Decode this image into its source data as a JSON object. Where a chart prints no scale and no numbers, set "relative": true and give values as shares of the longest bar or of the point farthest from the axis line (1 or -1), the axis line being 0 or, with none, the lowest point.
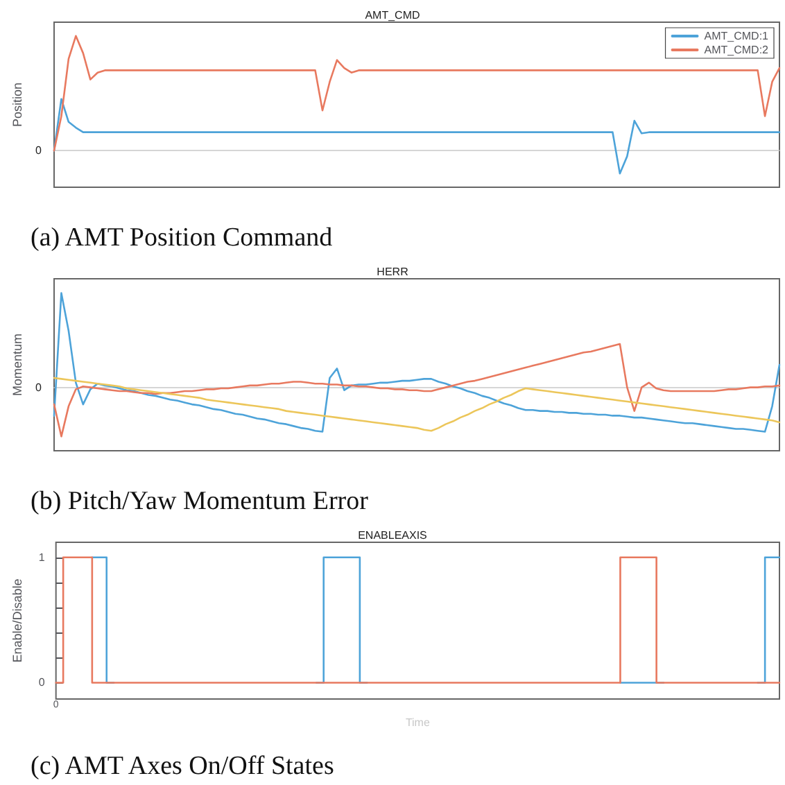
{
  "chart_data": [
    {
      "type": "line",
      "title": "AMT_CMD",
      "ylabel": "Position",
      "relative": true,
      "grid": false,
      "legend": "top right",
      "marker": "none",
      "line_style": "solid",
      "annotations": [
        "0",
        "(a) AMT Position Command"
      ],
      "categories": [
        null,
        null,
        null,
        null,
        null,
        null,
        null,
        null,
        null,
        null,
        null,
        null,
        null,
        null,
        null,
        null,
        null,
        null,
        null,
        null,
        null,
        null,
        null,
        null,
        null,
        null,
        null,
        null,
        null,
        null,
        null,
        null,
        null,
        null,
        null,
        null,
        null,
        null,
        null,
        null,
        null,
        null,
        null,
        null,
        null,
        null,
        null,
        null,
        null,
        null,
        null,
        null,
        null,
        null,
        null,
        null,
        null,
        null,
        null,
        null,
        null,
        null,
        null,
        null,
        null,
        null,
        null,
        null,
        null,
        null,
        null,
        null,
        null,
        null,
        null,
        null,
        null,
        null,
        null,
        null,
        null,
        null,
        null,
        null,
        null,
        null,
        null,
        null,
        null,
        null,
        null,
        null,
        null,
        null,
        null,
        null,
        null,
        null,
        null,
        null,
        null
      ],
      "series": [
        {
          "name": "AMT_CMD:1",
          "color": "#4da3d9",
          "values": [
            0,
            0.45,
            0.25,
            0.2,
            0.16,
            0.16,
            0.16,
            0.16,
            0.16,
            0.16,
            0.16,
            0.16,
            0.16,
            0.16,
            0.16,
            0.16,
            0.16,
            0.16,
            0.16,
            0.16,
            0.16,
            0.16,
            0.16,
            0.16,
            0.16,
            0.16,
            0.16,
            0.16,
            0.16,
            0.16,
            0.16,
            0.16,
            0.16,
            0.16,
            0.16,
            0.16,
            0.16,
            0.16,
            0.16,
            0.16,
            0.16,
            0.16,
            0.16,
            0.16,
            0.16,
            0.16,
            0.16,
            0.16,
            0.16,
            0.16,
            0.16,
            0.16,
            0.16,
            0.16,
            0.16,
            0.16,
            0.16,
            0.16,
            0.16,
            0.16,
            0.16,
            0.16,
            0.16,
            0.16,
            0.16,
            0.16,
            0.16,
            0.16,
            0.16,
            0.16,
            0.16,
            0.16,
            0.16,
            0.16,
            0.16,
            0.16,
            0.16,
            0.16,
            -0.2,
            -0.05,
            0.26,
            0.15,
            0.16,
            0.16,
            0.16,
            0.16,
            0.16,
            0.16,
            0.16,
            0.16,
            0.16,
            0.16,
            0.16,
            0.16,
            0.16,
            0.16,
            0.16,
            0.16,
            0.16,
            0.16,
            0.16
          ]
        },
        {
          "name": "AMT_CMD:2",
          "color": "#e8795f",
          "values": [
            0,
            0.3,
            0.8,
            1.0,
            0.85,
            0.62,
            0.68,
            0.7,
            0.7,
            0.7,
            0.7,
            0.7,
            0.7,
            0.7,
            0.7,
            0.7,
            0.7,
            0.7,
            0.7,
            0.7,
            0.7,
            0.7,
            0.7,
            0.7,
            0.7,
            0.7,
            0.7,
            0.7,
            0.7,
            0.7,
            0.7,
            0.7,
            0.7,
            0.7,
            0.7,
            0.7,
            0.7,
            0.35,
            0.6,
            0.79,
            0.72,
            0.68,
            0.7,
            0.7,
            0.7,
            0.7,
            0.7,
            0.7,
            0.7,
            0.7,
            0.7,
            0.7,
            0.7,
            0.7,
            0.7,
            0.7,
            0.7,
            0.7,
            0.7,
            0.7,
            0.7,
            0.7,
            0.7,
            0.7,
            0.7,
            0.7,
            0.7,
            0.7,
            0.7,
            0.7,
            0.7,
            0.7,
            0.7,
            0.7,
            0.7,
            0.7,
            0.7,
            0.7,
            0.7,
            0.7,
            0.7,
            0.7,
            0.7,
            0.7,
            0.7,
            0.7,
            0.7,
            0.7,
            0.7,
            0.7,
            0.7,
            0.7,
            0.7,
            0.7,
            0.7,
            0.7,
            0.7,
            0.7,
            0.3,
            0.6,
            0.72
          ]
        }
      ]
    },
    {
      "type": "line",
      "title": "HERR",
      "ylabel": "Momentum",
      "relative": true,
      "grid": false,
      "marker": "none",
      "line_style": "solid",
      "annotations": [
        "0",
        "(b) Pitch/Yaw Momentum Error"
      ],
      "categories": [
        null,
        null,
        null,
        null,
        null,
        null,
        null,
        null,
        null,
        null,
        null,
        null,
        null,
        null,
        null,
        null,
        null,
        null,
        null,
        null,
        null,
        null,
        null,
        null,
        null,
        null,
        null,
        null,
        null,
        null,
        null,
        null,
        null,
        null,
        null,
        null,
        null,
        null,
        null,
        null,
        null,
        null,
        null,
        null,
        null,
        null,
        null,
        null,
        null,
        null,
        null,
        null,
        null,
        null,
        null,
        null,
        null,
        null,
        null,
        null,
        null,
        null,
        null,
        null,
        null,
        null,
        null,
        null,
        null,
        null,
        null,
        null,
        null,
        null,
        null,
        null,
        null,
        null,
        null,
        null,
        null,
        null,
        null,
        null,
        null,
        null,
        null,
        null,
        null,
        null,
        null,
        null,
        null,
        null,
        null,
        null,
        null,
        null,
        null,
        null,
        null
      ],
      "series": [
        {
          "color": "#4da3d9",
          "values": [
            -0.3,
            1,
            0.6,
            0.05,
            -0.18,
            -0.02,
            0.04,
            0.02,
            0.01,
            -0.01,
            -0.03,
            -0.04,
            -0.06,
            -0.08,
            -0.09,
            -0.11,
            -0.13,
            -0.14,
            -0.16,
            -0.18,
            -0.19,
            -0.21,
            -0.23,
            -0.24,
            -0.26,
            -0.28,
            -0.29,
            -0.31,
            -0.33,
            -0.34,
            -0.36,
            -0.38,
            -0.39,
            -0.41,
            -0.43,
            -0.44,
            -0.46,
            -0.47,
            0.1,
            0.2,
            -0.03,
            0.02,
            0.03,
            0.03,
            0.04,
            0.05,
            0.05,
            0.06,
            0.07,
            0.07,
            0.08,
            0.09,
            0.09,
            0.06,
            0.04,
            0.01,
            -0.01,
            -0.04,
            -0.06,
            -0.09,
            -0.11,
            -0.14,
            -0.17,
            -0.19,
            -0.22,
            -0.24,
            -0.24,
            -0.25,
            -0.25,
            -0.26,
            -0.26,
            -0.27,
            -0.27,
            -0.28,
            -0.28,
            -0.29,
            -0.29,
            -0.3,
            -0.3,
            -0.31,
            -0.32,
            -0.32,
            -0.33,
            -0.34,
            -0.35,
            -0.36,
            -0.37,
            -0.38,
            -0.38,
            -0.39,
            -0.4,
            -0.41,
            -0.42,
            -0.43,
            -0.44,
            -0.44,
            -0.45,
            -0.46,
            -0.47,
            -0.2,
            0.24
          ]
        },
        {
          "color": "#e8795f",
          "values": [
            -0.18,
            -0.52,
            -0.2,
            -0.02,
            0.01,
            0,
            -0.01,
            -0.02,
            -0.03,
            -0.04,
            -0.04,
            -0.05,
            -0.06,
            -0.06,
            -0.07,
            -0.06,
            -0.06,
            -0.05,
            -0.04,
            -0.04,
            -0.03,
            -0.02,
            -0.02,
            -0.01,
            -0.01,
            0,
            0.01,
            0.02,
            0.02,
            0.03,
            0.04,
            0.04,
            0.05,
            0.06,
            0.06,
            0.05,
            0.04,
            0.04,
            0.03,
            0.03,
            0.02,
            0.02,
            0.01,
            0.01,
            0,
            -0.01,
            -0.01,
            -0.02,
            -0.02,
            -0.03,
            -0.03,
            -0.04,
            -0.04,
            -0.02,
            0,
            0.02,
            0.04,
            0.06,
            0.07,
            0.09,
            0.11,
            0.13,
            0.15,
            0.17,
            0.19,
            0.21,
            0.23,
            0.25,
            0.27,
            0.29,
            0.31,
            0.33,
            0.35,
            0.37,
            0.38,
            0.4,
            0.42,
            0.44,
            0.46,
            0,
            -0.25,
            0,
            0.05,
            -0.01,
            -0.03,
            -0.04,
            -0.04,
            -0.04,
            -0.04,
            -0.04,
            -0.04,
            -0.04,
            -0.03,
            -0.02,
            -0.02,
            -0.01,
            0,
            0,
            0.01,
            0.01,
            0.02
          ]
        },
        {
          "color": "#ecc65a",
          "values": [
            0.1,
            0.09,
            0.08,
            0.07,
            0.06,
            0.05,
            0.04,
            0.03,
            0.02,
            0.01,
            -0.01,
            -0.02,
            -0.03,
            -0.04,
            -0.05,
            -0.06,
            -0.07,
            -0.08,
            -0.09,
            -0.1,
            -0.11,
            -0.13,
            -0.14,
            -0.15,
            -0.16,
            -0.17,
            -0.18,
            -0.19,
            -0.2,
            -0.21,
            -0.22,
            -0.23,
            -0.25,
            -0.26,
            -0.27,
            -0.28,
            -0.29,
            -0.3,
            -0.31,
            -0.32,
            -0.33,
            -0.34,
            -0.35,
            -0.36,
            -0.37,
            -0.38,
            -0.39,
            -0.4,
            -0.41,
            -0.42,
            -0.43,
            -0.45,
            -0.46,
            -0.43,
            -0.39,
            -0.36,
            -0.32,
            -0.29,
            -0.25,
            -0.22,
            -0.18,
            -0.15,
            -0.11,
            -0.08,
            -0.04,
            -0.01,
            -0.02,
            -0.03,
            -0.04,
            -0.05,
            -0.06,
            -0.07,
            -0.08,
            -0.09,
            -0.1,
            -0.11,
            -0.12,
            -0.13,
            -0.14,
            -0.15,
            -0.16,
            -0.17,
            -0.18,
            -0.19,
            -0.2,
            -0.21,
            -0.22,
            -0.23,
            -0.24,
            -0.25,
            -0.26,
            -0.27,
            -0.28,
            -0.29,
            -0.3,
            -0.31,
            -0.32,
            -0.33,
            -0.34,
            -0.35,
            -0.37
          ]
        }
      ]
    },
    {
      "type": "step",
      "title": "ENABLEAXIS",
      "xlabel": "Time",
      "ylabel": "Enable/Disable",
      "ylim": [
        -0.13,
        1.12
      ],
      "yticks": [
        0,
        {
          "value": 0.2,
          "label": null
        },
        {
          "value": 0.4,
          "label": null
        },
        {
          "value": 0.6,
          "label": null
        },
        {
          "value": 0.8,
          "label": null
        },
        1
      ],
      "grid": false,
      "marker": "none",
      "line_style": "solid",
      "annotations": [
        "(c) AMT Axes On/Off States"
      ],
      "categories": [
        "0",
        null,
        null,
        null,
        null,
        null,
        null,
        null,
        null,
        null,
        null,
        null,
        null,
        null,
        null,
        null,
        null,
        null,
        null,
        null,
        null,
        null,
        null,
        null,
        null,
        null,
        null,
        null,
        null,
        null,
        null,
        null,
        null,
        null,
        null,
        null,
        null,
        null,
        null,
        null,
        null,
        null,
        null,
        null,
        null,
        null,
        null,
        null,
        null,
        null,
        null,
        null,
        null,
        null,
        null,
        null,
        null,
        null,
        null,
        null,
        null,
        null,
        null,
        null,
        null,
        null,
        null,
        null,
        null,
        null,
        null,
        null,
        null,
        null,
        null,
        null,
        null,
        null,
        null,
        null,
        null,
        null,
        null,
        null,
        null,
        null,
        null,
        null,
        null,
        null,
        null,
        null,
        null,
        null,
        null,
        null,
        null,
        null,
        null,
        null,
        null
      ],
      "series": [
        {
          "color": "#4da3d9",
          "values": [
            null,
            null,
            null,
            null,
            null,
            1,
            1,
            0,
            null,
            null,
            null,
            null,
            null,
            null,
            null,
            null,
            null,
            null,
            null,
            null,
            null,
            null,
            null,
            null,
            null,
            null,
            null,
            null,
            null,
            null,
            null,
            null,
            null,
            null,
            null,
            null,
            0,
            1,
            1,
            1,
            1,
            1,
            0,
            null,
            null,
            null,
            null,
            null,
            null,
            null,
            null,
            null,
            null,
            null,
            null,
            null,
            null,
            null,
            null,
            null,
            null,
            null,
            null,
            null,
            null,
            null,
            null,
            null,
            null,
            null,
            null,
            null,
            null,
            null,
            null,
            null,
            null,
            null,
            0,
            0,
            0,
            0,
            0,
            0,
            null,
            null,
            null,
            null,
            null,
            null,
            null,
            null,
            null,
            null,
            null,
            null,
            null,
            0,
            1,
            1,
            1
          ]
        },
        {
          "color": "#e8795f",
          "values": [
            0,
            1,
            1,
            1,
            1,
            0,
            0,
            0,
            0,
            0,
            0,
            0,
            0,
            0,
            0,
            0,
            0,
            0,
            0,
            0,
            0,
            0,
            0,
            0,
            0,
            0,
            0,
            0,
            0,
            0,
            0,
            0,
            0,
            0,
            0,
            0,
            0,
            0,
            0,
            0,
            0,
            0,
            0,
            0,
            0,
            0,
            0,
            0,
            0,
            0,
            0,
            0,
            0,
            0,
            0,
            0,
            0,
            0,
            0,
            0,
            0,
            0,
            0,
            0,
            0,
            0,
            0,
            0,
            0,
            0,
            0,
            0,
            0,
            0,
            0,
            0,
            0,
            0,
            1,
            1,
            1,
            1,
            1,
            0,
            0,
            0,
            0,
            0,
            0,
            0,
            0,
            0,
            0,
            0,
            0,
            0,
            0,
            0,
            0,
            0,
            0
          ]
        }
      ]
    }
  ]
}
